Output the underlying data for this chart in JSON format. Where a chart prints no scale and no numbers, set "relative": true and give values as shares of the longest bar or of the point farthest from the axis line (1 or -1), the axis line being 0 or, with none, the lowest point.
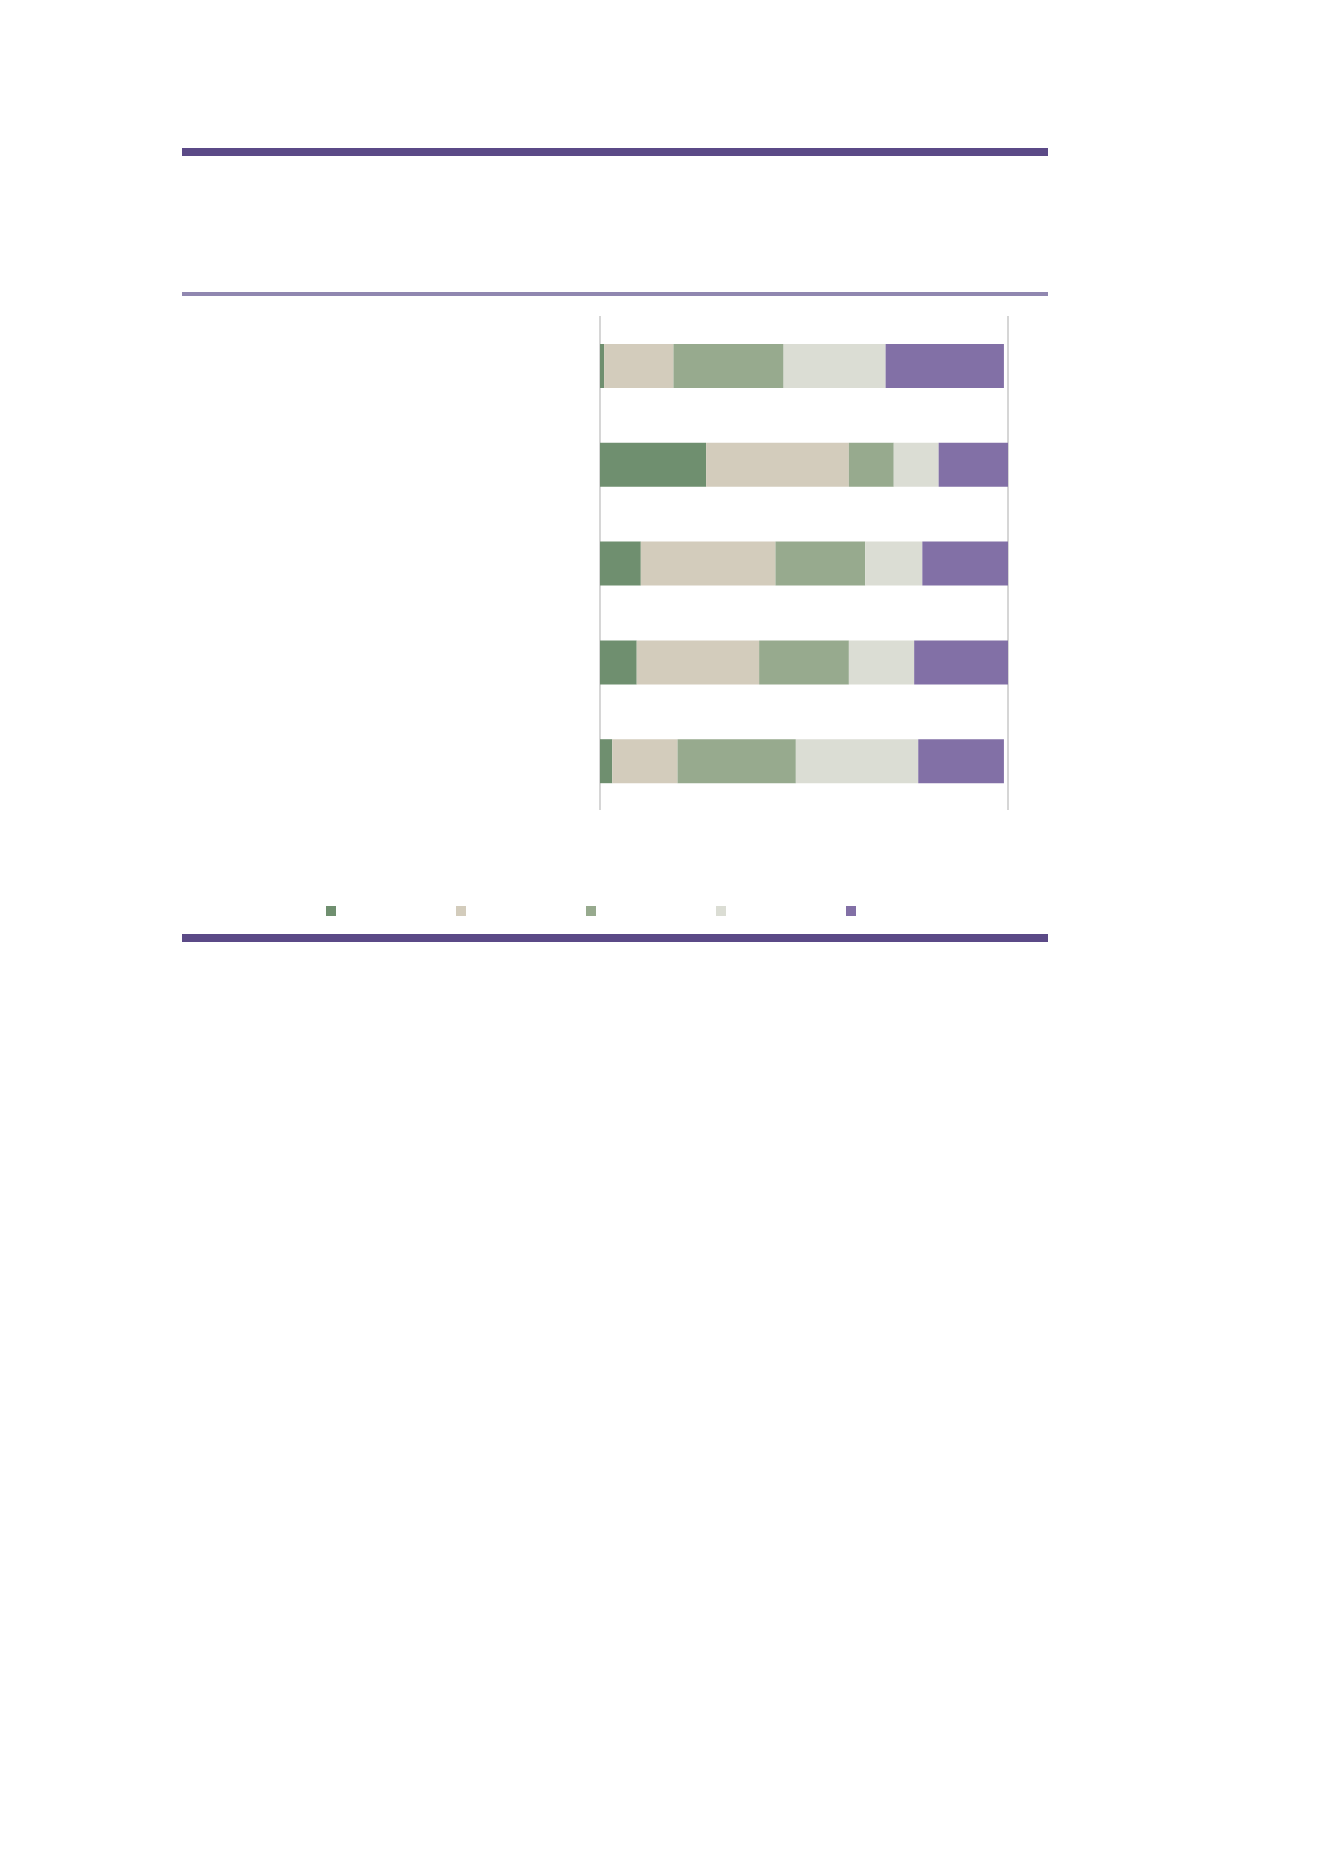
{
  "chart_data": {
    "type": "bar",
    "orientation": "horizontal",
    "stacked": true,
    "relative": true,
    "grid": "x",
    "categories": [
      null,
      null,
      null,
      null,
      null
    ],
    "series": [
      {
        "color": "#6f8f6f",
        "values": [
          0.01,
          0.26,
          0.1,
          0.09,
          0.03
        ]
      },
      {
        "color": "#d3ccbc",
        "values": [
          0.17,
          0.35,
          0.33,
          0.3,
          0.16
        ]
      },
      {
        "color": "#97aa8e",
        "values": [
          0.27,
          0.11,
          0.22,
          0.22,
          0.29
        ]
      },
      {
        "color": "#dbddd4",
        "values": [
          0.25,
          0.11,
          0.14,
          0.16,
          0.3
        ]
      },
      {
        "color": "#8270a6",
        "values": [
          0.29,
          0.17,
          0.21,
          0.23,
          0.21
        ]
      }
    ]
  }
}
